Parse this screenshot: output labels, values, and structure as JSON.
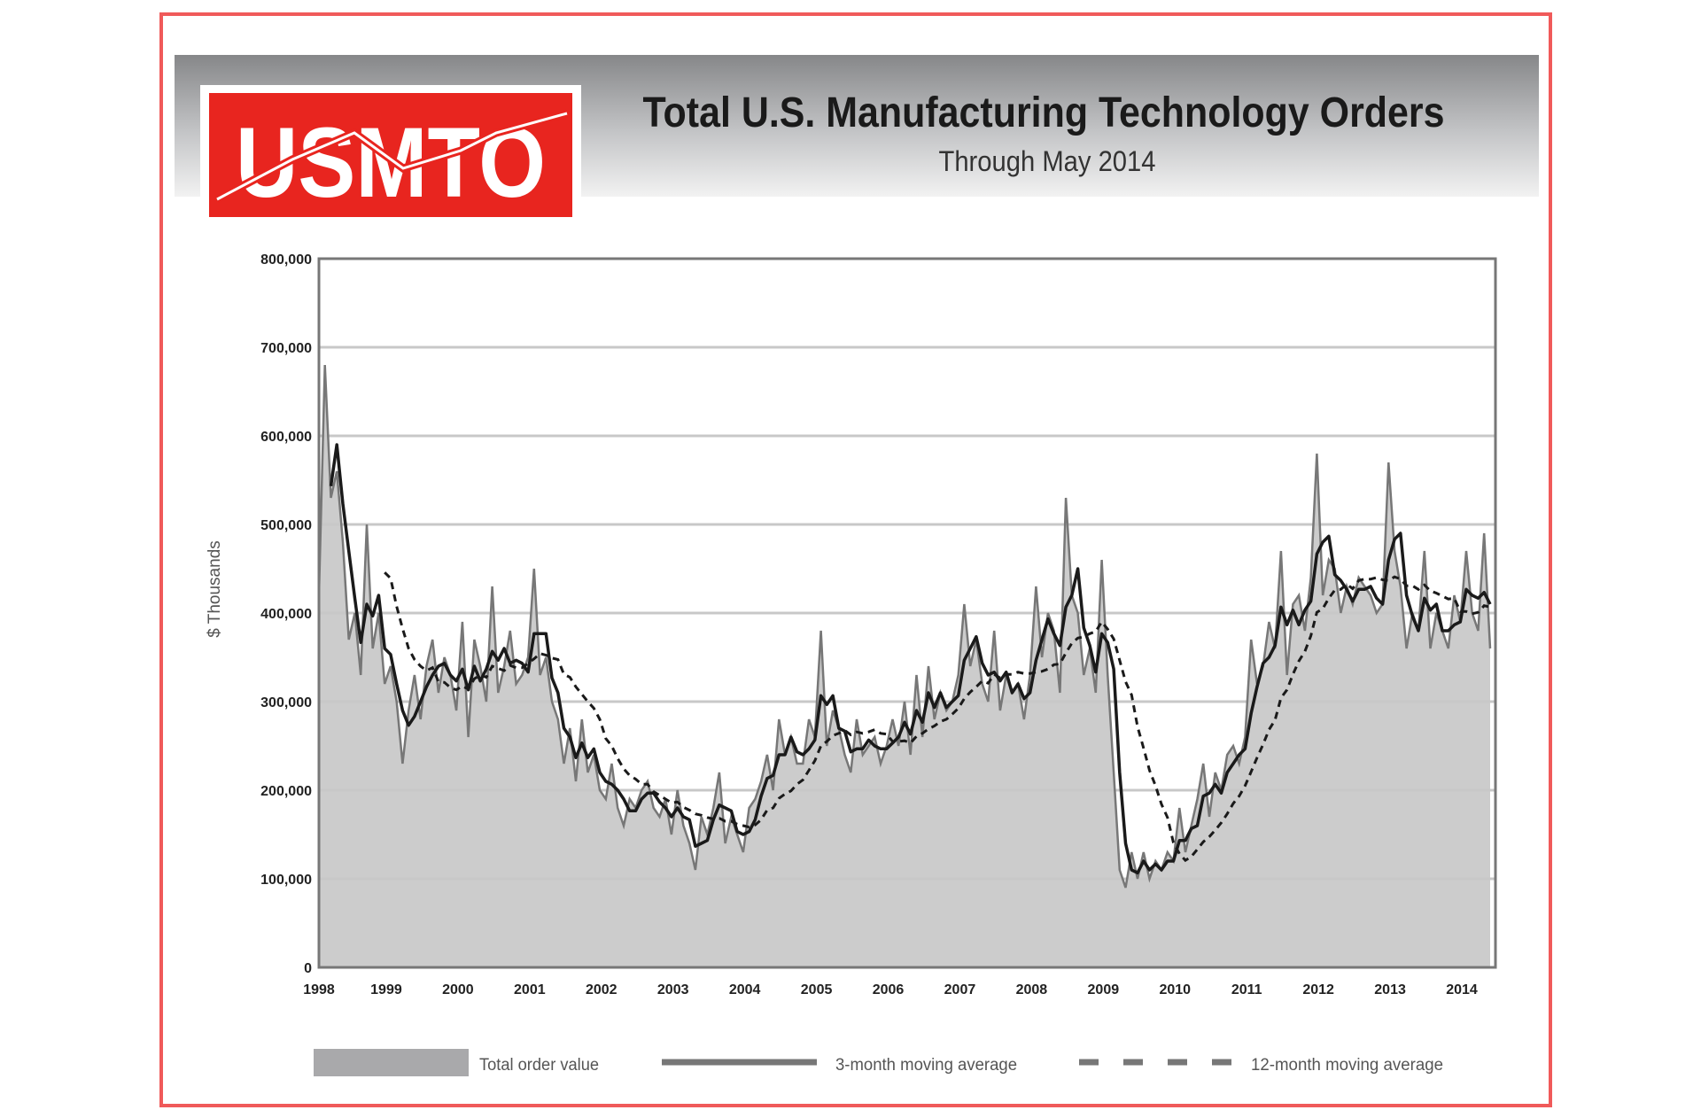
{
  "header": {
    "logo_text": "USMTO",
    "title": "Total U.S. Manufacturing Technology Orders",
    "subtitle": "Through May 2014"
  },
  "colors": {
    "frame": "#f05a5a",
    "logo_red": "#e8251f",
    "area_fill": "#cccccc",
    "total_line": "#777777",
    "average_lines": "#1a1a1a"
  },
  "chart_data": {
    "type": "area",
    "title": "Total U.S. Manufacturing Technology Orders",
    "subtitle": "Through May 2014",
    "ylabel": "$ Thousands",
    "xlabel": "",
    "ylim": [
      0,
      800000
    ],
    "yticks": [
      "0",
      "100,000",
      "200,000",
      "300,000",
      "400,000",
      "500,000",
      "600,000",
      "700,000",
      "800,000"
    ],
    "xticks": [
      "1998",
      "1999",
      "2000",
      "2001",
      "2002",
      "2003",
      "2004",
      "2005",
      "2006",
      "2007",
      "2008",
      "2009",
      "2010",
      "2011",
      "2012",
      "2013",
      "2014"
    ],
    "x_start": "1998-01",
    "x_end": "2014-05",
    "frequency": "monthly",
    "grid": "horizontal",
    "legend_placement": "bottom",
    "series": [
      {
        "name": "Total order value",
        "style": "area",
        "values": [
          420000,
          680000,
          530000,
          560000,
          480000,
          370000,
          400000,
          330000,
          500000,
          360000,
          400000,
          320000,
          340000,
          300000,
          230000,
          290000,
          330000,
          280000,
          340000,
          370000,
          310000,
          350000,
          330000,
          290000,
          390000,
          260000,
          370000,
          340000,
          300000,
          430000,
          310000,
          340000,
          380000,
          320000,
          330000,
          350000,
          450000,
          330000,
          350000,
          300000,
          280000,
          230000,
          270000,
          210000,
          280000,
          220000,
          240000,
          200000,
          190000,
          230000,
          180000,
          160000,
          190000,
          180000,
          200000,
          210000,
          180000,
          170000,
          190000,
          150000,
          200000,
          160000,
          140000,
          110000,
          170000,
          150000,
          180000,
          220000,
          140000,
          170000,
          150000,
          130000,
          180000,
          190000,
          210000,
          240000,
          200000,
          280000,
          240000,
          260000,
          230000,
          230000,
          280000,
          260000,
          380000,
          250000,
          290000,
          270000,
          240000,
          220000,
          280000,
          240000,
          250000,
          260000,
          230000,
          250000,
          280000,
          250000,
          300000,
          240000,
          330000,
          260000,
          340000,
          280000,
          310000,
          290000,
          300000,
          330000,
          410000,
          340000,
          370000,
          320000,
          300000,
          380000,
          290000,
          330000,
          310000,
          320000,
          280000,
          330000,
          430000,
          350000,
          400000,
          380000,
          310000,
          530000,
          420000,
          400000,
          330000,
          360000,
          310000,
          460000,
          330000,
          220000,
          110000,
          90000,
          130000,
          100000,
          130000,
          100000,
          120000,
          110000,
          130000,
          120000,
          180000,
          130000,
          160000,
          190000,
          230000,
          170000,
          220000,
          200000,
          240000,
          250000,
          230000,
          260000,
          370000,
          320000,
          340000,
          390000,
          360000,
          470000,
          330000,
          410000,
          420000,
          380000,
          440000,
          580000,
          420000,
          460000,
          450000,
          400000,
          430000,
          410000,
          440000,
          430000,
          420000,
          400000,
          410000,
          570000,
          470000,
          430000,
          360000,
          400000,
          380000,
          470000,
          360000,
          400000,
          380000,
          360000,
          420000,
          390000,
          470000,
          400000,
          380000,
          490000,
          360000
        ]
      },
      {
        "name": "3-month moving average",
        "style": "solid",
        "window_months": 3,
        "of": "Total order value"
      },
      {
        "name": "12-month moving average",
        "style": "dashed",
        "window_months": 12,
        "of": "Total order value"
      }
    ]
  }
}
